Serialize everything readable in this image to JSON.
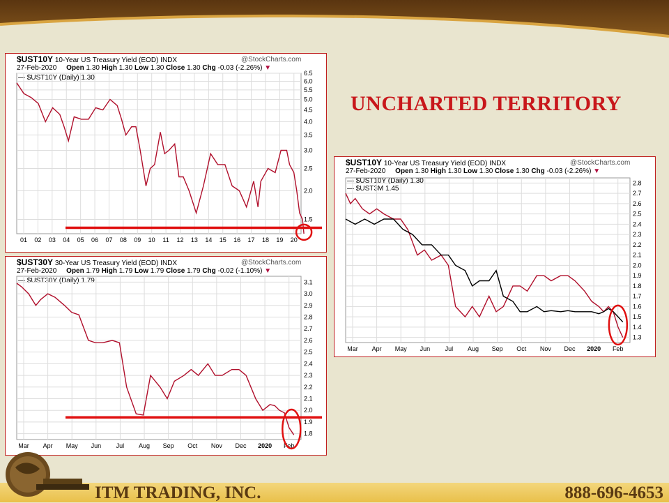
{
  "slide": {
    "heading": "UNCHARTED TERRITORY",
    "company": "ITM TRADING, INC.",
    "phone": "888-696-4653",
    "colors": {
      "heading": "#c8171b",
      "annotation": "#e01010",
      "series_red": "#b0102c",
      "series_black": "#000000"
    }
  },
  "charts_meta": [
    {
      "symbol": "$UST10Y",
      "desc": "10-Year US Treasury Yield (EOD)",
      "exchange": "INDX",
      "source": "@StockCharts.com",
      "date": "27-Feb-2020",
      "open_lbl": "Open",
      "open": "1.30",
      "high_lbl": "High",
      "high": "1.30",
      "low_lbl": "Low",
      "low": "1.30",
      "close_lbl": "Close",
      "close": "1.30",
      "chg_lbl": "Chg",
      "chg": "-0.03 (-2.26%)",
      "legend": [
        "$UST10Y (Daily) 1.30"
      ]
    },
    {
      "symbol": "$UST30Y",
      "desc": "30-Year US Treasury Yield (EOD)",
      "exchange": "INDX",
      "source": "@StockCharts.com",
      "date": "27-Feb-2020",
      "open_lbl": "Open",
      "open": "1.79",
      "high_lbl": "High",
      "high": "1.79",
      "low_lbl": "Low",
      "low": "1.79",
      "close_lbl": "Close",
      "close": "1.79",
      "chg_lbl": "Chg",
      "chg": "-0.02 (-1.10%)",
      "legend": [
        "$UST30Y (Daily) 1.79"
      ]
    },
    {
      "symbol": "$UST10Y",
      "desc": "10-Year US Treasury Yield (EOD)",
      "exchange": "INDX",
      "source": "@StockCharts.com",
      "date": "27-Feb-2020",
      "open_lbl": "Open",
      "open": "1.30",
      "high_lbl": "High",
      "high": "1.30",
      "low_lbl": "Low",
      "low": "1.30",
      "close_lbl": "Close",
      "close": "1.30",
      "chg_lbl": "Chg",
      "chg": "-0.03 (-2.26%)",
      "legend": [
        "$UST10Y (Daily) 1.30",
        "$UST3M 1.45"
      ]
    }
  ],
  "chart_data": [
    {
      "type": "line",
      "scale": "log",
      "xticks": [
        "01",
        "02",
        "03",
        "04",
        "05",
        "06",
        "07",
        "08",
        "09",
        "10",
        "11",
        "12",
        "13",
        "14",
        "15",
        "16",
        "17",
        "18",
        "19",
        "20"
      ],
      "yticks": [
        6.5,
        6.0,
        5.5,
        5.0,
        4.5,
        4.0,
        3.5,
        3.0,
        2.5,
        2.0,
        1.5
      ],
      "ylim": [
        1.3,
        6.5
      ],
      "series": [
        {
          "name": "$UST10Y (Daily) 1.30",
          "color": "red",
          "x": [
            0.0,
            0.5,
            1.0,
            1.5,
            2.0,
            2.5,
            3.0,
            3.3,
            3.6,
            4.0,
            4.5,
            5.0,
            5.5,
            6.0,
            6.5,
            7.0,
            7.3,
            7.6,
            8.0,
            8.3,
            8.6,
            9.0,
            9.3,
            9.6,
            10.0,
            10.3,
            10.6,
            11.0,
            11.3,
            11.6,
            12.0,
            12.5,
            13.0,
            13.5,
            14.0,
            14.5,
            15.0,
            15.5,
            16.0,
            16.5,
            16.8,
            17.0,
            17.5,
            18.0,
            18.4,
            18.8,
            19.0,
            19.3,
            19.5,
            19.7,
            19.9,
            20.0
          ],
          "y": [
            5.9,
            5.3,
            5.1,
            4.8,
            4.0,
            4.6,
            4.3,
            3.8,
            3.3,
            4.2,
            4.1,
            4.1,
            4.6,
            4.5,
            5.0,
            4.7,
            4.1,
            3.5,
            3.8,
            3.8,
            3.0,
            2.1,
            2.5,
            2.6,
            3.6,
            2.9,
            3.0,
            3.2,
            2.3,
            2.3,
            2.0,
            1.6,
            2.1,
            2.9,
            2.6,
            2.6,
            2.1,
            2.0,
            1.7,
            2.2,
            1.7,
            2.2,
            2.5,
            2.4,
            3.0,
            3.0,
            2.6,
            2.4,
            2.0,
            1.6,
            1.5,
            1.3
          ]
        }
      ],
      "hline": 1.38
    },
    {
      "type": "line",
      "xticks": [
        "Mar",
        "Apr",
        "May",
        "Jun",
        "Jul",
        "Aug",
        "Sep",
        "Oct",
        "Nov",
        "Dec",
        "2020",
        "Feb"
      ],
      "yticks": [
        3.1,
        3.0,
        2.9,
        2.8,
        2.7,
        2.6,
        2.5,
        2.4,
        2.3,
        2.2,
        2.1,
        2.0,
        1.9,
        1.8
      ],
      "ylim": [
        1.75,
        3.15
      ],
      "series": [
        {
          "name": "$UST30Y (Daily) 1.79",
          "color": "red/black",
          "x": [
            0.0,
            0.2,
            0.5,
            0.8,
            1.0,
            1.3,
            1.6,
            2.0,
            2.3,
            2.6,
            3.0,
            3.3,
            3.6,
            4.0,
            4.3,
            4.6,
            5.0,
            5.3,
            5.6,
            6.0,
            6.3,
            6.6,
            7.0,
            7.3,
            7.6,
            8.0,
            8.3,
            8.6,
            9.0,
            9.3,
            9.6,
            10.0,
            10.3,
            10.6,
            10.8,
            11.0,
            11.2,
            11.4,
            11.6
          ],
          "y": [
            3.09,
            3.06,
            3.0,
            2.9,
            2.95,
            3.0,
            2.97,
            2.9,
            2.84,
            2.82,
            2.6,
            2.58,
            2.58,
            2.6,
            2.58,
            2.2,
            1.97,
            1.96,
            2.3,
            2.2,
            2.1,
            2.25,
            2.3,
            2.35,
            2.3,
            2.4,
            2.3,
            2.3,
            2.35,
            2.35,
            2.3,
            2.1,
            2.0,
            2.05,
            2.04,
            2.0,
            1.98,
            1.85,
            1.79
          ]
        }
      ],
      "hline": 1.94
    },
    {
      "type": "line",
      "xticks": [
        "Mar",
        "Apr",
        "May",
        "Jun",
        "Jul",
        "Aug",
        "Sep",
        "Oct",
        "Nov",
        "Dec",
        "2020",
        "Feb"
      ],
      "yticks": [
        2.8,
        2.7,
        2.6,
        2.5,
        2.4,
        2.3,
        2.2,
        2.1,
        2.0,
        1.9,
        1.8,
        1.7,
        1.6,
        1.5,
        1.4,
        1.3
      ],
      "ylim": [
        1.25,
        2.85
      ],
      "series": [
        {
          "name": "$UST10Y (Daily) 1.30",
          "color": "red",
          "x": [
            0.0,
            0.2,
            0.4,
            0.7,
            1.0,
            1.3,
            1.6,
            2.0,
            2.3,
            2.6,
            3.0,
            3.3,
            3.6,
            4.0,
            4.3,
            4.6,
            5.0,
            5.3,
            5.6,
            6.0,
            6.3,
            6.6,
            7.0,
            7.3,
            7.6,
            8.0,
            8.3,
            8.6,
            9.0,
            9.3,
            9.6,
            10.0,
            10.3,
            10.6,
            10.8,
            11.0,
            11.2,
            11.4,
            11.6
          ],
          "y": [
            2.7,
            2.6,
            2.65,
            2.55,
            2.5,
            2.55,
            2.5,
            2.45,
            2.45,
            2.35,
            2.1,
            2.15,
            2.05,
            2.1,
            2.0,
            1.6,
            1.5,
            1.6,
            1.5,
            1.7,
            1.55,
            1.6,
            1.8,
            1.8,
            1.75,
            1.9,
            1.9,
            1.85,
            1.9,
            1.9,
            1.85,
            1.75,
            1.65,
            1.6,
            1.55,
            1.6,
            1.55,
            1.4,
            1.3
          ]
        },
        {
          "name": "$UST3M 1.45",
          "color": "black",
          "x": [
            0.0,
            0.4,
            0.8,
            1.2,
            1.6,
            2.0,
            2.4,
            2.8,
            3.2,
            3.6,
            4.0,
            4.3,
            4.6,
            5.0,
            5.3,
            5.6,
            6.0,
            6.3,
            6.6,
            7.0,
            7.3,
            7.6,
            8.0,
            8.3,
            8.6,
            9.0,
            9.3,
            9.6,
            10.0,
            10.3,
            10.6,
            10.8,
            11.0,
            11.2,
            11.4,
            11.6
          ],
          "y": [
            2.45,
            2.4,
            2.45,
            2.4,
            2.45,
            2.45,
            2.35,
            2.3,
            2.2,
            2.2,
            2.1,
            2.1,
            2.0,
            1.95,
            1.8,
            1.85,
            1.85,
            1.95,
            1.7,
            1.65,
            1.55,
            1.55,
            1.6,
            1.55,
            1.56,
            1.55,
            1.56,
            1.55,
            1.55,
            1.55,
            1.53,
            1.55,
            1.58,
            1.55,
            1.5,
            1.45
          ]
        }
      ],
      "hline": null
    }
  ]
}
